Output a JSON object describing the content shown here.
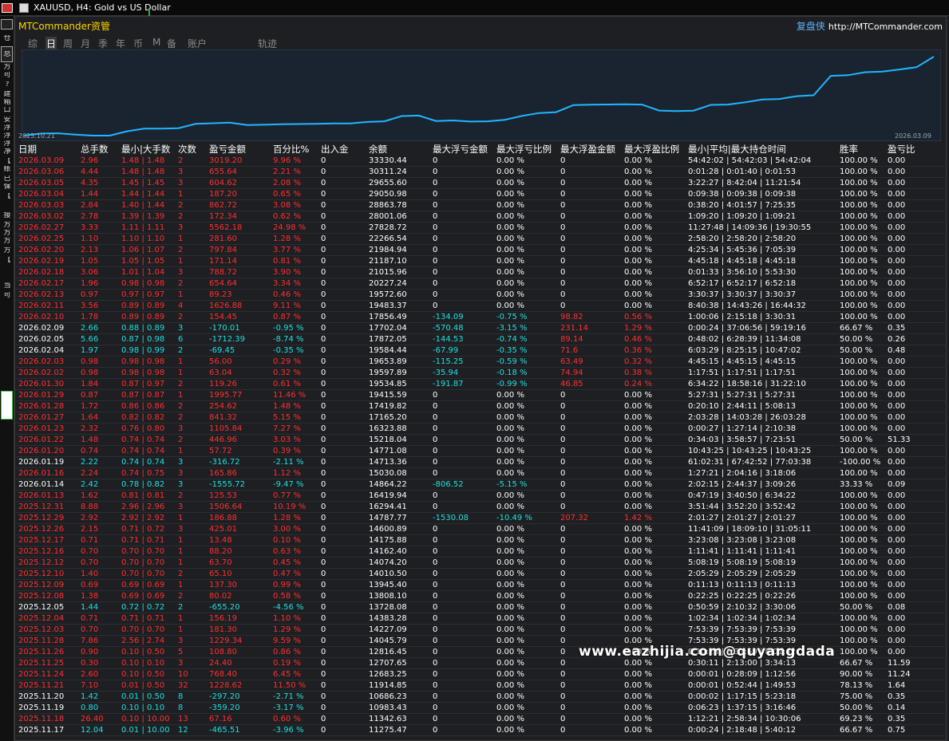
{
  "window": {
    "title": "XAUUSD, H4:  Gold vs US Dollar"
  },
  "left_strip": {
    "items": [
      "仓",
      "总",
      "方",
      "可",
      "?",
      "建",
      "箱",
      "口",
      "安",
      "浮",
      "浮",
      "浮",
      "净",
      "【",
      "账",
      "已",
      "保",
      "【",
      "接",
      "方",
      "方",
      "方",
      "方",
      "【",
      "当",
      "可"
    ]
  },
  "panel": {
    "title": "MTCommander资管",
    "brand": "复盘侠",
    "url": "http://MTCommander.com"
  },
  "tabs": [
    "综",
    "日",
    "周",
    "月",
    "季",
    "年",
    "币",
    "M",
    "备",
    "账户",
    "轨迹"
  ],
  "active_tab": "日",
  "chart": {
    "start_label": "2025.10.21",
    "end_label": "2026.03.09",
    "line_color": "#1fb7ff"
  },
  "chart_data": {
    "type": "line",
    "x_start": "2025.10.21",
    "x_end": "2026.03.09",
    "values": [
      10686,
      11276,
      11343,
      10984,
      10686,
      10686,
      11915,
      12683,
      12708,
      12816,
      14046,
      14227,
      14383,
      13728,
      13808,
      13946,
      14011,
      14074,
      14162,
      14176,
      14601,
      14788,
      16294,
      16420,
      14864,
      15030,
      14713,
      14771,
      15218,
      16324,
      17165,
      17420,
      19416,
      19535,
      19598,
      19654,
      19584,
      17872,
      17702,
      17856,
      19483,
      19573,
      20227,
      21016,
      21187,
      21985,
      22267,
      27829,
      28001,
      28864,
      29051,
      29656,
      30311,
      33330
    ]
  },
  "columns": [
    "日期",
    "总手数",
    "最小|大手数",
    "次数",
    "盈亏金额",
    "百分比%",
    "出入金",
    "余额",
    "最大浮亏金额",
    "最大浮亏比例",
    "最大浮盈金额",
    "最大浮盈比例",
    "最小|平均|最大持仓时间",
    "胜率",
    "盈亏比"
  ],
  "rows": [
    [
      "2026.03.09",
      "2.96",
      "1.48 | 1.48",
      "2",
      "3019.20",
      "9.96 %",
      "0",
      "33330.44",
      "0",
      "0.00 %",
      "0",
      "0.00 %",
      "54:42:02 | 54:42:03 | 54:42:04",
      "100.00 %",
      "0.00"
    ],
    [
      "2026.03.06",
      "4.44",
      "1.48 | 1.48",
      "3",
      "655.64",
      "2.21 %",
      "0",
      "30311.24",
      "0",
      "0.00 %",
      "0",
      "0.00 %",
      "0:01:28 | 0:01:40 | 0:01:53",
      "100.00 %",
      "0.00"
    ],
    [
      "2026.03.05",
      "4.35",
      "1.45 | 1.45",
      "3",
      "604.62",
      "2.08 %",
      "0",
      "29655.60",
      "0",
      "0.00 %",
      "0",
      "0.00 %",
      "3:22:27 | 8:42:04 | 11:21:54",
      "100.00 %",
      "0.00"
    ],
    [
      "2026.03.04",
      "1.44",
      "1.44 | 1.44",
      "1",
      "187.20",
      "0.65 %",
      "0",
      "29050.98",
      "0",
      "0.00 %",
      "0",
      "0.00 %",
      "0:09:38 | 0:09:38 | 0:09:38",
      "100.00 %",
      "0.00"
    ],
    [
      "2026.03.03",
      "2.84",
      "1.40 | 1.44",
      "2",
      "862.72",
      "3.08 %",
      "0",
      "28863.78",
      "0",
      "0.00 %",
      "0",
      "0.00 %",
      "0:38:20 | 4:01:57 | 7:25:35",
      "100.00 %",
      "0.00"
    ],
    [
      "2026.03.02",
      "2.78",
      "1.39 | 1.39",
      "2",
      "172.34",
      "0.62 %",
      "0",
      "28001.06",
      "0",
      "0.00 %",
      "0",
      "0.00 %",
      "1:09:20 | 1:09:20 | 1:09:21",
      "100.00 %",
      "0.00"
    ],
    [
      "2026.02.27",
      "3.33",
      "1.11 | 1.11",
      "3",
      "5562.18",
      "24.98 %",
      "0",
      "27828.72",
      "0",
      "0.00 %",
      "0",
      "0.00 %",
      "11:27:48 | 14:09:36 | 19:30:55",
      "100.00 %",
      "0.00"
    ],
    [
      "2026.02.25",
      "1.10",
      "1.10 | 1.10",
      "1",
      "281.60",
      "1.28 %",
      "0",
      "22266.54",
      "0",
      "0.00 %",
      "0",
      "0.00 %",
      "2:58:20 | 2:58:20 | 2:58:20",
      "100.00 %",
      "0.00"
    ],
    [
      "2026.02.20",
      "2.13",
      "1.06 | 1.07",
      "2",
      "797.84",
      "3.77 %",
      "0",
      "21984.94",
      "0",
      "0.00 %",
      "0",
      "0.00 %",
      "4:25:34 | 5:45:36 | 7:05:39",
      "100.00 %",
      "0.00"
    ],
    [
      "2026.02.19",
      "1.05",
      "1.05 | 1.05",
      "1",
      "171.14",
      "0.81 %",
      "0",
      "21187.10",
      "0",
      "0.00 %",
      "0",
      "0.00 %",
      "4:45:18 | 4:45:18 | 4:45:18",
      "100.00 %",
      "0.00"
    ],
    [
      "2026.02.18",
      "3.06",
      "1.01 | 1.04",
      "3",
      "788.72",
      "3.90 %",
      "0",
      "21015.96",
      "0",
      "0.00 %",
      "0",
      "0.00 %",
      "0:01:33 | 3:56:10 | 5:53:30",
      "100.00 %",
      "0.00"
    ],
    [
      "2026.02.17",
      "1.96",
      "0.98 | 0.98",
      "2",
      "654.64",
      "3.34 %",
      "0",
      "20227.24",
      "0",
      "0.00 %",
      "0",
      "0.00 %",
      "6:52:17 | 6:52:17 | 6:52:18",
      "100.00 %",
      "0.00"
    ],
    [
      "2026.02.13",
      "0.97",
      "0.97 | 0.97",
      "1",
      "89.23",
      "0.46 %",
      "0",
      "19572.60",
      "0",
      "0.00 %",
      "0",
      "0.00 %",
      "3:30:37 | 3:30:37 | 3:30:37",
      "100.00 %",
      "0.00"
    ],
    [
      "2026.02.11",
      "3.56",
      "0.89 | 0.89",
      "4",
      "1626.88",
      "9.11 %",
      "0",
      "19483.37",
      "0",
      "0.00 %",
      "0",
      "0.00 %",
      "8:40:38 | 14:43:26 | 16:44:32",
      "100.00 %",
      "0.00"
    ],
    [
      "2026.02.10",
      "1.78",
      "0.89 | 0.89",
      "2",
      "154.45",
      "0.87 %",
      "0",
      "17856.49",
      "-134.09",
      "-0.75 %",
      "98.82",
      "0.56 %",
      "1:00:06 | 2:15:18 | 3:30:31",
      "100.00 %",
      "0.00"
    ],
    [
      "2026.02.09",
      "2.66",
      "0.88 | 0.89",
      "3",
      "-170.01",
      "-0.95 %",
      "0",
      "17702.04",
      "-570.48",
      "-3.15 %",
      "231.14",
      "1.29 %",
      "0:00:24 | 37:06:56 | 59:19:16",
      "66.67 %",
      "0.35"
    ],
    [
      "2026.02.05",
      "5.66",
      "0.87 | 0.98",
      "6",
      "-1712.39",
      "-8.74 %",
      "0",
      "17872.05",
      "-144.53",
      "-0.74 %",
      "89.14",
      "0.46 %",
      "0:48:02 | 6:28:39 | 11:34:08",
      "50.00 %",
      "0.26"
    ],
    [
      "2026.02.04",
      "1.97",
      "0.98 | 0.99",
      "2",
      "-69.45",
      "-0.35 %",
      "0",
      "19584.44",
      "-67.99",
      "-0.35 %",
      "71.6",
      "0.36 %",
      "6:03:29 | 8:25:15 | 10:47:02",
      "50.00 %",
      "0.48"
    ],
    [
      "2026.02.03",
      "0.98",
      "0.98 | 0.98",
      "1",
      "56.00",
      "0.29 %",
      "0",
      "19653.89",
      "-115.25",
      "-0.59 %",
      "63.49",
      "0.32 %",
      "4:45:15 | 4:45:15 | 4:45:15",
      "100.00 %",
      "0.00"
    ],
    [
      "2026.02.02",
      "0.98",
      "0.98 | 0.98",
      "1",
      "63.04",
      "0.32 %",
      "0",
      "19597.89",
      "-35.94",
      "-0.18 %",
      "74.94",
      "0.38 %",
      "1:17:51 | 1:17:51 | 1:17:51",
      "100.00 %",
      "0.00"
    ],
    [
      "2026.01.30",
      "1.84",
      "0.87 | 0.97",
      "2",
      "119.26",
      "0.61 %",
      "0",
      "19534.85",
      "-191.87",
      "-0.99 %",
      "46.85",
      "0.24 %",
      "6:34:22 | 18:58:16 | 31:22:10",
      "100.00 %",
      "0.00"
    ],
    [
      "2026.01.29",
      "0.87",
      "0.87 | 0.87",
      "1",
      "1995.77",
      "11.46 %",
      "0",
      "19415.59",
      "0",
      "0.00 %",
      "0",
      "0.00 %",
      "5:27:31 | 5:27:31 | 5:27:31",
      "100.00 %",
      "0.00"
    ],
    [
      "2026.01.28",
      "1.72",
      "0.86 | 0.86",
      "2",
      "254.62",
      "1.48 %",
      "0",
      "17419.82",
      "0",
      "0.00 %",
      "0",
      "0.00 %",
      "0:20:10 | 2:44:11 | 5:08:13",
      "100.00 %",
      "0.00"
    ],
    [
      "2026.01.27",
      "1.64",
      "0.82 | 0.82",
      "2",
      "841.32",
      "5.15 %",
      "0",
      "17165.20",
      "0",
      "0.00 %",
      "0",
      "0.00 %",
      "2:03:28 | 14:03:28 | 26:03:28",
      "100.00 %",
      "0.00"
    ],
    [
      "2026.01.23",
      "2.32",
      "0.76 | 0.80",
      "3",
      "1105.84",
      "7.27 %",
      "0",
      "16323.88",
      "0",
      "0.00 %",
      "0",
      "0.00 %",
      "0:00:27 | 1:27:14 | 2:10:38",
      "100.00 %",
      "0.00"
    ],
    [
      "2026.01.22",
      "1.48",
      "0.74 | 0.74",
      "2",
      "446.96",
      "3.03 %",
      "0",
      "15218.04",
      "0",
      "0.00 %",
      "0",
      "0.00 %",
      "0:34:03 | 3:58:57 | 7:23:51",
      "50.00 %",
      "51.33"
    ],
    [
      "2026.01.20",
      "0.74",
      "0.74 | 0.74",
      "1",
      "57.72",
      "0.39 %",
      "0",
      "14771.08",
      "0",
      "0.00 %",
      "0",
      "0.00 %",
      "10:43:25 | 10:43:25 | 10:43:25",
      "100.00 %",
      "0.00"
    ],
    [
      "2026.01.19",
      "2.22",
      "0.74 | 0.74",
      "3",
      "-316.72",
      "-2.11 %",
      "0",
      "14713.36",
      "0",
      "0.00 %",
      "0",
      "0.00 %",
      "61:02:31 | 67:42:52 | 77:03:38",
      "-100.00 %",
      "0.00"
    ],
    [
      "2026.01.16",
      "2.24",
      "0.74 | 0.75",
      "3",
      "165.86",
      "1.12 %",
      "0",
      "15030.08",
      "0",
      "0.00 %",
      "0",
      "0.00 %",
      "1:27:21 | 2:04:16 | 3:18:06",
      "100.00 %",
      "0.00"
    ],
    [
      "2026.01.14",
      "2.42",
      "0.78 | 0.82",
      "3",
      "-1555.72",
      "-9.47 %",
      "0",
      "14864.22",
      "-806.52",
      "-5.15 %",
      "0",
      "0.00 %",
      "2:02:15 | 2:44:37 | 3:09:26",
      "33.33 %",
      "0.09"
    ],
    [
      "2026.01.13",
      "1.62",
      "0.81 | 0.81",
      "2",
      "125.53",
      "0.77 %",
      "0",
      "16419.94",
      "0",
      "0.00 %",
      "0",
      "0.00 %",
      "0:47:19 | 3:40:50 | 6:34:22",
      "100.00 %",
      "0.00"
    ],
    [
      "2025.12.31",
      "8.88",
      "2.96 | 2.96",
      "3",
      "1506.64",
      "10.19 %",
      "0",
      "16294.41",
      "0",
      "0.00 %",
      "0",
      "0.00 %",
      "3:51:44 | 3:52:20 | 3:52:42",
      "100.00 %",
      "0.00"
    ],
    [
      "2025.12.29",
      "2.92",
      "2.92 | 2.92",
      "1",
      "186.88",
      "1.28 %",
      "0",
      "14787.77",
      "-1530.08",
      "-10.49 %",
      "207.32",
      "1.42 %",
      "2:01:27 | 2:01:27 | 2:01:27",
      "100.00 %",
      "0.00"
    ],
    [
      "2025.12.26",
      "2.15",
      "0.71 | 0.72",
      "3",
      "425.01",
      "3.00 %",
      "0",
      "14600.89",
      "0",
      "0.00 %",
      "0",
      "0.00 %",
      "11:41:09 | 18:09:10 | 31:05:11",
      "100.00 %",
      "0.00"
    ],
    [
      "2025.12.17",
      "0.71",
      "0.71 | 0.71",
      "1",
      "13.48",
      "0.10 %",
      "0",
      "14175.88",
      "0",
      "0.00 %",
      "0",
      "0.00 %",
      "3:23:08 | 3:23:08 | 3:23:08",
      "100.00 %",
      "0.00"
    ],
    [
      "2025.12.16",
      "0.70",
      "0.70 | 0.70",
      "1",
      "88.20",
      "0.63 %",
      "0",
      "14162.40",
      "0",
      "0.00 %",
      "0",
      "0.00 %",
      "1:11:41 | 1:11:41 | 1:11:41",
      "100.00 %",
      "0.00"
    ],
    [
      "2025.12.12",
      "0.70",
      "0.70 | 0.70",
      "1",
      "63.70",
      "0.45 %",
      "0",
      "14074.20",
      "0",
      "0.00 %",
      "0",
      "0.00 %",
      "5:08:19 | 5:08:19 | 5:08:19",
      "100.00 %",
      "0.00"
    ],
    [
      "2025.12.10",
      "1.40",
      "0.70 | 0.70",
      "2",
      "65.10",
      "0.47 %",
      "0",
      "14010.50",
      "0",
      "0.00 %",
      "0",
      "0.00 %",
      "2:05:29 | 2:05:29 | 2:05:29",
      "100.00 %",
      "0.00"
    ],
    [
      "2025.12.09",
      "0.69",
      "0.69 | 0.69",
      "1",
      "137.30",
      "0.99 %",
      "0",
      "13945.40",
      "0",
      "0.00 %",
      "0",
      "0.00 %",
      "0:11:13 | 0:11:13 | 0:11:13",
      "100.00 %",
      "0.00"
    ],
    [
      "2025.12.08",
      "1.38",
      "0.69 | 0.69",
      "2",
      "80.02",
      "0.58 %",
      "0",
      "13808.10",
      "0",
      "0.00 %",
      "0",
      "0.00 %",
      "0:22:25 | 0:22:25 | 0:22:26",
      "100.00 %",
      "0.00"
    ],
    [
      "2025.12.05",
      "1.44",
      "0.72 | 0.72",
      "2",
      "-655.20",
      "-4.56 %",
      "0",
      "13728.08",
      "0",
      "0.00 %",
      "0",
      "0.00 %",
      "0:50:59 | 2:10:32 | 3:30:06",
      "50.00 %",
      "0.08"
    ],
    [
      "2025.12.04",
      "0.71",
      "0.71 | 0.71",
      "1",
      "156.19",
      "1.10 %",
      "0",
      "14383.28",
      "0",
      "0.00 %",
      "0",
      "0.00 %",
      "1:02:34 | 1:02:34 | 1:02:34",
      "100.00 %",
      "0.00"
    ],
    [
      "2025.12.03",
      "0.70",
      "0.70 | 0.70",
      "1",
      "181.30",
      "1.29 %",
      "0",
      "14227.09",
      "0",
      "0.00 %",
      "0",
      "0.00 %",
      "7:53:39 | 7:53:39 | 7:53:39",
      "100.00 %",
      "0.00"
    ],
    [
      "2025.11.28",
      "7.86",
      "2.56 | 2.74",
      "3",
      "1229.34",
      "9.59 %",
      "0",
      "14045.79",
      "0",
      "0.00 %",
      "0",
      "0.00 %",
      "7:53:39 | 7:53:39 | 7:53:39",
      "100.00 %",
      "0.00"
    ],
    [
      "2025.11.26",
      "0.90",
      "0.10 | 0.50",
      "5",
      "108.80",
      "0.86 %",
      "0",
      "12816.45",
      "0",
      "0.00 %",
      "0",
      "0.00 %",
      "0:10:23 | 2:31:59 | 8:01:42",
      "100.00 %",
      "0.00"
    ],
    [
      "2025.11.25",
      "0.30",
      "0.10 | 0.10",
      "3",
      "24.40",
      "0.19 %",
      "0",
      "12707.65",
      "0",
      "0.00 %",
      "0",
      "0.00 %",
      "0:30:11 | 2:13:00 | 3:34:13",
      "66.67 %",
      "11.59"
    ],
    [
      "2025.11.24",
      "2.60",
      "0.10 | 0.50",
      "10",
      "768.40",
      "6.45 %",
      "0",
      "12683.25",
      "0",
      "0.00 %",
      "0",
      "0.00 %",
      "0:00:01 | 0:28:09 | 1:12:56",
      "90.00 %",
      "11.24"
    ],
    [
      "2025.11.21",
      "7.10",
      "0.01 | 0.50",
      "32",
      "1228.62",
      "11.50 %",
      "0",
      "11914.85",
      "0",
      "0.00 %",
      "0",
      "0.00 %",
      "0:00:01 | 0:52:44 | 1:49:53",
      "78.13 %",
      "1.64"
    ],
    [
      "2025.11.20",
      "1.42",
      "0.01 | 0.50",
      "8",
      "-297.20",
      "-2.71 %",
      "0",
      "10686.23",
      "0",
      "0.00 %",
      "0",
      "0.00 %",
      "0:00:02 | 1:17:15 | 5:23:18",
      "75.00 %",
      "0.35"
    ],
    [
      "2025.11.19",
      "0.80",
      "0.10 | 0.10",
      "8",
      "-359.20",
      "-3.17 %",
      "0",
      "10983.43",
      "0",
      "0.00 %",
      "0",
      "0.00 %",
      "0:06:23 | 1:37:15 | 3:16:46",
      "50.00 %",
      "0.14"
    ],
    [
      "2025.11.18",
      "26.40",
      "0.10 | 10.00",
      "13",
      "67.16",
      "0.60 %",
      "0",
      "11342.63",
      "0",
      "0.00 %",
      "0",
      "0.00 %",
      "1:12:21 | 2:58:34 | 10:30:06",
      "69.23 %",
      "0.35"
    ],
    [
      "2025.11.17",
      "12.04",
      "0.01 | 10.00",
      "12",
      "-465.51",
      "-3.96 %",
      "0",
      "11275.47",
      "0",
      "0.00 %",
      "0",
      "0.00 %",
      "0:00:24 | 2:18:48 | 5:40:12",
      "66.67 %",
      "0.75"
    ]
  ],
  "watermark": "www.eazhijia.com@quyangdada",
  "colors": {
    "profit": "#ff3030",
    "loss": "#20e0e0",
    "neutral": "#ffffff",
    "accent": "#ffd700",
    "link": "#5ab4ff"
  }
}
